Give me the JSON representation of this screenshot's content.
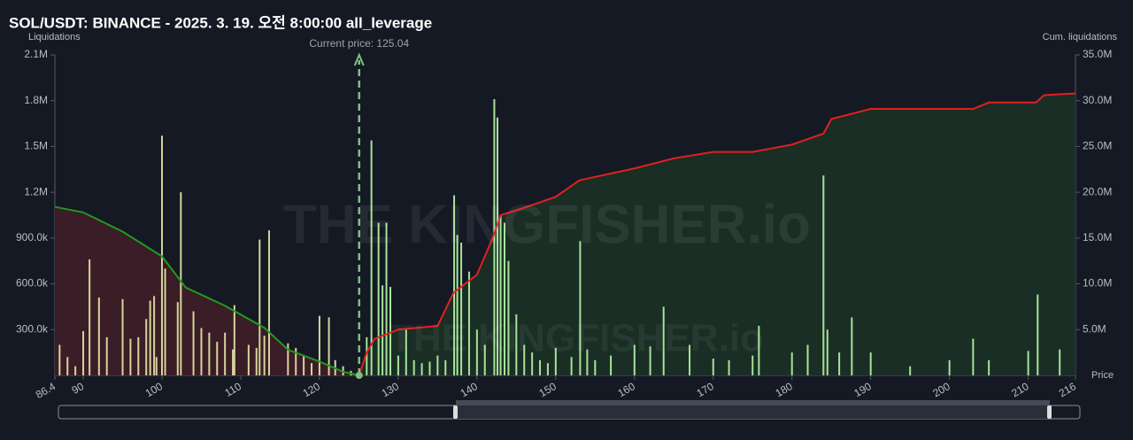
{
  "chart_data": {
    "type": "bar",
    "title": "SOL/USDT: BINANCE - 2025. 3. 19. 오전 8:00:00 all_leverage",
    "y_label": "Liquidations",
    "y2_label": "Cum. liquidations",
    "x_label": "Price",
    "watermark": "THE KINGFISHER.io",
    "annotation": {
      "text": "Current price: 125.04",
      "x": 125.04,
      "color": "#7fbf7f"
    },
    "xlim": [
      86.4,
      216
    ],
    "xticks": [
      86.4,
      90,
      100,
      110,
      120,
      130,
      140,
      150,
      160,
      170,
      180,
      190,
      200,
      210,
      216
    ],
    "ylim": [
      0,
      2100000
    ],
    "yticks": [
      {
        "value": 300000,
        "label": "300.0k"
      },
      {
        "value": 600000,
        "label": "600.0k"
      },
      {
        "value": 900000,
        "label": "900.0k"
      },
      {
        "value": 1200000,
        "label": "1.2M"
      },
      {
        "value": 1500000,
        "label": "1.5M"
      },
      {
        "value": 1800000,
        "label": "1.8M"
      },
      {
        "value": 2100000,
        "label": "2.1M"
      }
    ],
    "y2lim": [
      0,
      35000000
    ],
    "y2ticks": [
      {
        "value": 5000000,
        "label": "5.0M"
      },
      {
        "value": 10000000,
        "label": "10.0M"
      },
      {
        "value": 15000000,
        "label": "15.0M"
      },
      {
        "value": 20000000,
        "label": "20.0M"
      },
      {
        "value": 25000000,
        "label": "25.0M"
      },
      {
        "value": 30000000,
        "label": "30.0M"
      },
      {
        "value": 35000000,
        "label": "35.0M"
      }
    ],
    "series": [
      {
        "color": "#d6d49c",
        "x": [
          87,
          88,
          89,
          90,
          90.8,
          92,
          93,
          95,
          96,
          97,
          98,
          98.5,
          99,
          99.3,
          100,
          100.4,
          102,
          102.4,
          104,
          105,
          106,
          107,
          108,
          109,
          109.2,
          111,
          112,
          112.4,
          113,
          113.6,
          116,
          117,
          118,
          119,
          120,
          121.2,
          122,
          123,
          124
        ],
        "values": [
          200000,
          120000,
          60000,
          290000,
          760000,
          510000,
          250000,
          500000,
          240000,
          250000,
          370000,
          490000,
          520000,
          120000,
          1570000,
          700000,
          480000,
          1200000,
          420000,
          310000,
          280000,
          220000,
          280000,
          170000,
          460000,
          200000,
          180000,
          890000,
          260000,
          950000,
          210000,
          180000,
          130000,
          80000,
          390000,
          380000,
          100000,
          60000,
          30000
        ]
      },
      {
        "color": "#a6e39a",
        "x": [
          126,
          126.6,
          127.5,
          128,
          128.5,
          129,
          130,
          131,
          132,
          133,
          134,
          135,
          136,
          137.1,
          137.5,
          138,
          139,
          140,
          141,
          142.2,
          142.6,
          143,
          143.5,
          144,
          145,
          146,
          147,
          148,
          149,
          150,
          152,
          153.1,
          154,
          155,
          157,
          160,
          162,
          163.7,
          167,
          170,
          172,
          175,
          175.8,
          180,
          182,
          184,
          184.5,
          186,
          187.6,
          190,
          195,
          200,
          203,
          205,
          210,
          211.2,
          214
        ],
        "values": [
          250000,
          1540000,
          1000000,
          590000,
          1000000,
          580000,
          130000,
          300000,
          100000,
          80000,
          90000,
          130000,
          100000,
          1180000,
          920000,
          870000,
          680000,
          300000,
          200000,
          1810000,
          1690000,
          1050000,
          1000000,
          750000,
          400000,
          200000,
          150000,
          100000,
          80000,
          180000,
          120000,
          880000,
          170000,
          100000,
          130000,
          200000,
          190000,
          450000,
          200000,
          110000,
          100000,
          130000,
          325000,
          150000,
          200000,
          1310000,
          300000,
          150000,
          380000,
          150000,
          60000,
          100000,
          240000,
          100000,
          160000,
          530000,
          170000
        ]
      },
      {
        "type": "line",
        "axis": "y2",
        "color": "#1f9a1f",
        "fill": "#3a1d26",
        "x": [
          86.4,
          90,
          95,
          100,
          103,
          108,
          113,
          116,
          120,
          123,
          125.04
        ],
        "values": [
          18400000,
          17800000,
          15700000,
          13000000,
          9600000,
          7600000,
          5200000,
          2800000,
          1500000,
          400000,
          0
        ]
      },
      {
        "type": "line",
        "axis": "y2",
        "color": "#e02020",
        "fill": "#1a2e25",
        "x": [
          125.04,
          126,
          127,
          130,
          135,
          137,
          140,
          142,
          143,
          146,
          150,
          153,
          160,
          165,
          170,
          175,
          180,
          184,
          185,
          190,
          203,
          205,
          211,
          212,
          216
        ],
        "values": [
          0,
          2500000,
          4000000,
          5000000,
          5400000,
          9000000,
          11000000,
          15000000,
          17500000,
          18300000,
          19500000,
          21300000,
          22600000,
          23700000,
          24400000,
          24400000,
          25200000,
          26400000,
          28000000,
          29100000,
          29100000,
          29800000,
          29800000,
          30600000,
          30800000
        ]
      }
    ]
  }
}
